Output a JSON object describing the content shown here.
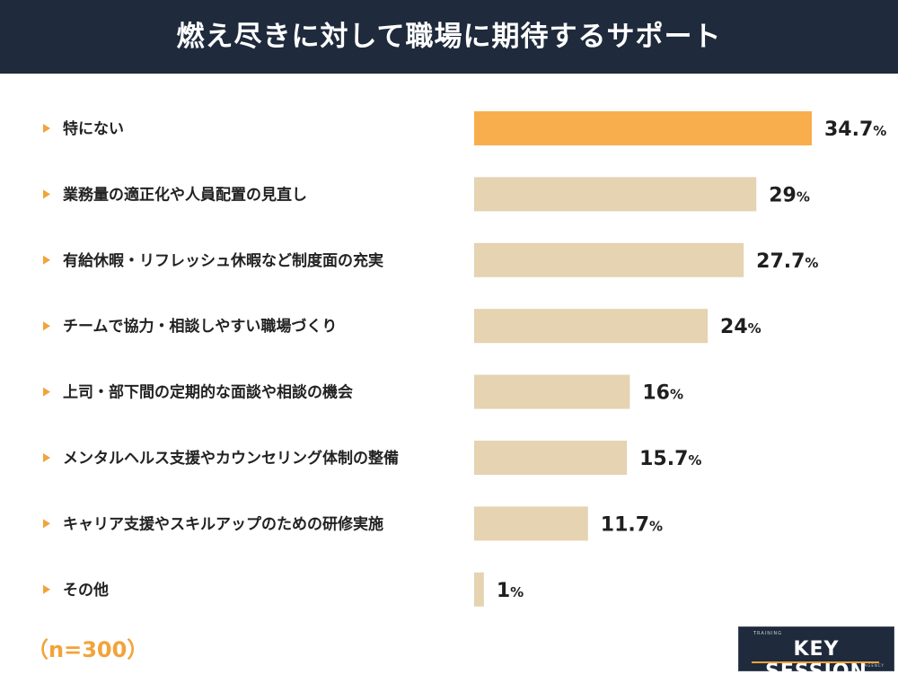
{
  "title": "燃え尽きに対して職場に期待するサポート",
  "sample_size": "（n=300）",
  "logo": {
    "top": "TRAINING",
    "main": "KEY SESSION",
    "bottom": "AGENCY"
  },
  "colors": {
    "header": "#1f2b3c",
    "highlight": "#f8ae4c",
    "bar": "#e5d3b1",
    "marker": "#f2a33a"
  },
  "chart_data": {
    "type": "bar",
    "orientation": "horizontal",
    "categories": [
      "特にない",
      "業務量の適正化や人員配置の見直し",
      "有給休暇・リフレッシュ休暇など制度面の充実",
      "チームで協力・相談しやすい職場づくり",
      "上司・部下間の定期的な面談や相談の機会",
      "メンタルヘルス支援やカウンセリング体制の整備",
      "キャリア支援やスキルアップのための研修実施",
      "その他"
    ],
    "values": [
      34.7,
      29,
      27.7,
      24,
      16,
      15.7,
      11.7,
      1
    ],
    "value_labels": [
      "34.7",
      "29",
      "27.7",
      "24",
      "16",
      "15.7",
      "11.7",
      "1"
    ],
    "unit": "%",
    "highlight_index": 0
  }
}
